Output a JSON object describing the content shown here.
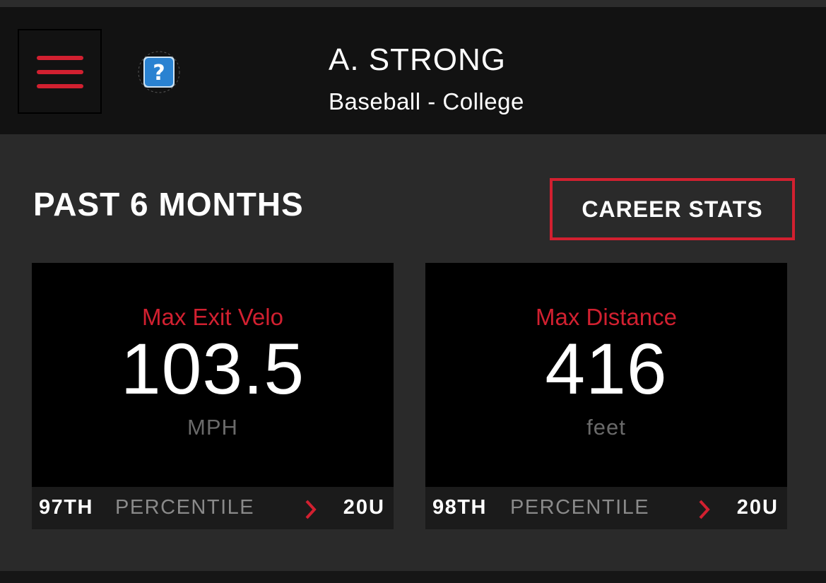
{
  "header": {
    "player_name": "A. STRONG",
    "player_level": "Baseball - College",
    "menu_icon": "hamburger-menu-icon",
    "help_icon": "question-mark-icon"
  },
  "section": {
    "title": "PAST 6 MONTHS",
    "career_button_label": "CAREER STATS"
  },
  "cards": [
    {
      "label": "Max Exit Velo",
      "value": "103.5",
      "unit": "MPH",
      "percentile_rank": "97TH",
      "percentile_word": "PERCENTILE",
      "age_group": "20U"
    },
    {
      "label": "Max Distance",
      "value": "416",
      "unit": "feet",
      "percentile_rank": "98TH",
      "percentile_word": "PERCENTILE",
      "age_group": "20U"
    }
  ],
  "colors": {
    "accent": "#d22030",
    "background": "#2a2a2a",
    "header_bg": "#121212",
    "card_bg": "#000000",
    "muted_text": "#6a6a6a"
  }
}
